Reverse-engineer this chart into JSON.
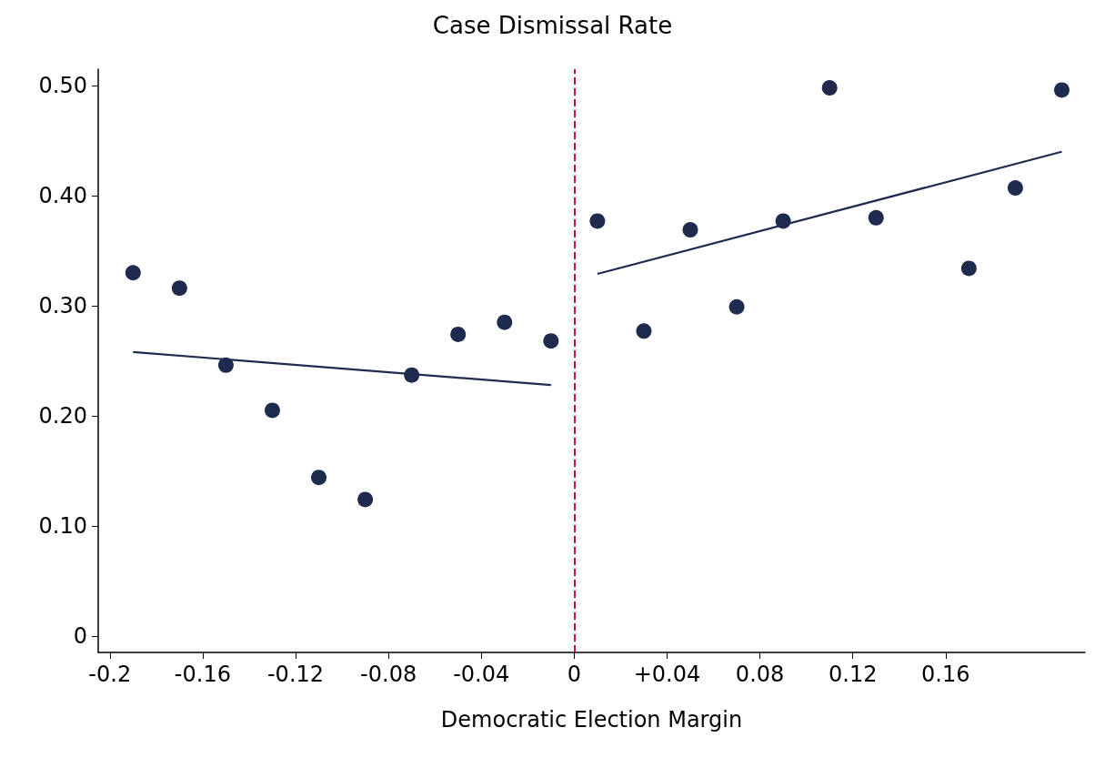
{
  "chart_data": {
    "type": "scatter",
    "title": "Case Dismissal Rate",
    "xlabel": "Democratic Election Margin",
    "series": [
      {
        "marker": "circle",
        "color": "#1f2a4f",
        "x": [
          -0.19,
          -0.17,
          -0.15,
          -0.13,
          -0.11,
          -0.09,
          -0.07,
          -0.05,
          -0.03,
          -0.01,
          0.01,
          0.03,
          0.05,
          0.07,
          0.09,
          0.11,
          0.13,
          0.17,
          0.19,
          0.21
        ],
        "values": [
          0.33,
          0.316,
          0.246,
          0.205,
          0.144,
          0.124,
          0.237,
          0.274,
          0.285,
          0.268,
          0.377,
          0.277,
          0.369,
          0.299,
          0.377,
          0.498,
          0.38,
          0.334,
          0.407,
          0.496
        ]
      },
      {
        "type": "line",
        "marker": "none",
        "color": "#1f2a4f",
        "x": [
          -0.19,
          -0.01
        ],
        "values": [
          0.258,
          0.228
        ]
      },
      {
        "type": "line",
        "marker": "none",
        "color": "#1f2a4f",
        "x": [
          0.01,
          0.21
        ],
        "values": [
          0.329,
          0.44
        ]
      }
    ],
    "xlim": [
      -0.205,
      0.22
    ],
    "xticks": [
      -0.2,
      -0.16,
      -0.12,
      -0.08,
      -0.04,
      0,
      {
        "value": 0.04,
        "label": "+0.04"
      },
      0.08,
      0.12,
      0.16
    ],
    "ylim": [
      -0.015,
      0.515
    ],
    "yticks": [
      0,
      {
        "value": 0.1,
        "label": "0.10"
      },
      {
        "value": 0.2,
        "label": "0.20"
      },
      {
        "value": 0.3,
        "label": "0.30"
      },
      {
        "value": 0.4,
        "label": "0.40"
      },
      {
        "value": 0.5,
        "label": "0.50"
      }
    ],
    "ref_lines": [
      {
        "axis": "x",
        "value": 0,
        "color": "#c0143c",
        "line_style": "dashed"
      }
    ],
    "grid": false,
    "line_style": "solid"
  }
}
